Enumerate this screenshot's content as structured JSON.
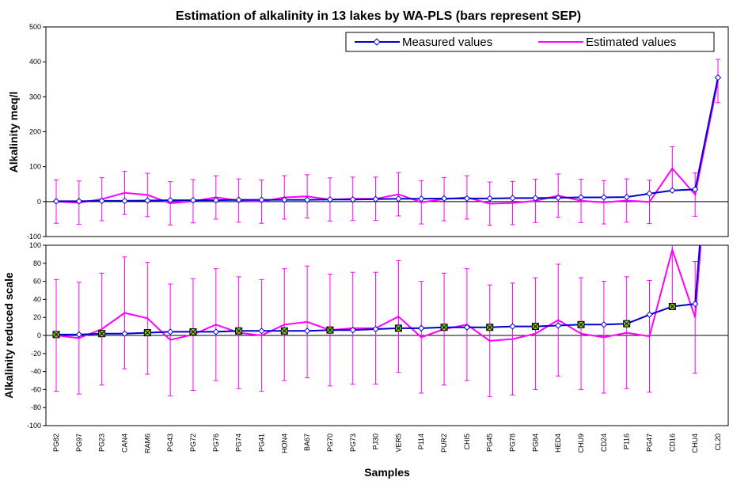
{
  "chart_data": {
    "type": "line",
    "title": "Estimation of  alkalinity in 13 lakes by  WA-PLS (bars represent SEP)",
    "xlabel": "Samples",
    "categories": [
      "PG82",
      "PG97",
      "PG23",
      "CAN4",
      "RAM6",
      "PG43",
      "PG72",
      "PG76",
      "PG74",
      "PG41",
      "HON4",
      "BA67",
      "PG70",
      "PG73",
      "PJ30",
      "VER5",
      "P114",
      "PUR2",
      "CHI5",
      "PG45",
      "PG78",
      "PG84",
      "HED4",
      "CHU9",
      "CD24",
      "P116",
      "PG47",
      "CD16",
      "CHU4",
      "CL20"
    ],
    "legend": {
      "position": "top-right",
      "entries": [
        "Measured values",
        "Estimated values"
      ]
    },
    "series": [
      {
        "name": "Measured values",
        "color": "#0000cc",
        "marker": "diamond",
        "values": [
          1,
          1,
          2,
          2,
          3,
          4,
          4,
          4,
          5,
          5,
          5,
          5,
          6,
          6,
          7,
          8,
          8,
          9,
          9,
          9,
          10,
          10,
          11,
          12,
          12,
          13,
          23,
          32,
          35,
          355
        ]
      },
      {
        "name": "Estimated values",
        "color": "#ff00ff",
        "marker": "none",
        "values": [
          0,
          -3,
          7,
          25,
          19,
          -5,
          1,
          12,
          3,
          0,
          12,
          15,
          6,
          8,
          8,
          21,
          -2,
          7,
          12,
          -6,
          -4,
          2,
          17,
          2,
          -2,
          3,
          -1,
          95,
          20,
          345
        ],
        "error_bar_sep": [
          62,
          62,
          62,
          62,
          62,
          62,
          62,
          62,
          62,
          62,
          62,
          62,
          62,
          62,
          62,
          62,
          62,
          62,
          62,
          62,
          62,
          62,
          62,
          62,
          62,
          62,
          62,
          62,
          62,
          62
        ]
      }
    ],
    "panels": [
      {
        "ylabel": "Alkalinity meq/l",
        "ylim": [
          -100,
          500
        ],
        "yticks": [
          "500",
          "400",
          "300",
          "200",
          "100",
          "0",
          "-100"
        ]
      },
      {
        "ylabel": "Alkalinity reduced scale",
        "ylim": [
          -100,
          100
        ],
        "yticks": [
          "100",
          "80",
          "60",
          "40",
          "20",
          "0",
          "-20",
          "-40",
          "-60",
          "-80",
          "-100"
        ],
        "square_markers": [
          "PG82",
          "PG23",
          "RAM6",
          "PG72",
          "PG74",
          "HON4",
          "PG70",
          "VER5",
          "PUR2",
          "PG45",
          "PG84",
          "CHU9",
          "P116",
          "CD16"
        ]
      }
    ],
    "grid": false
  }
}
